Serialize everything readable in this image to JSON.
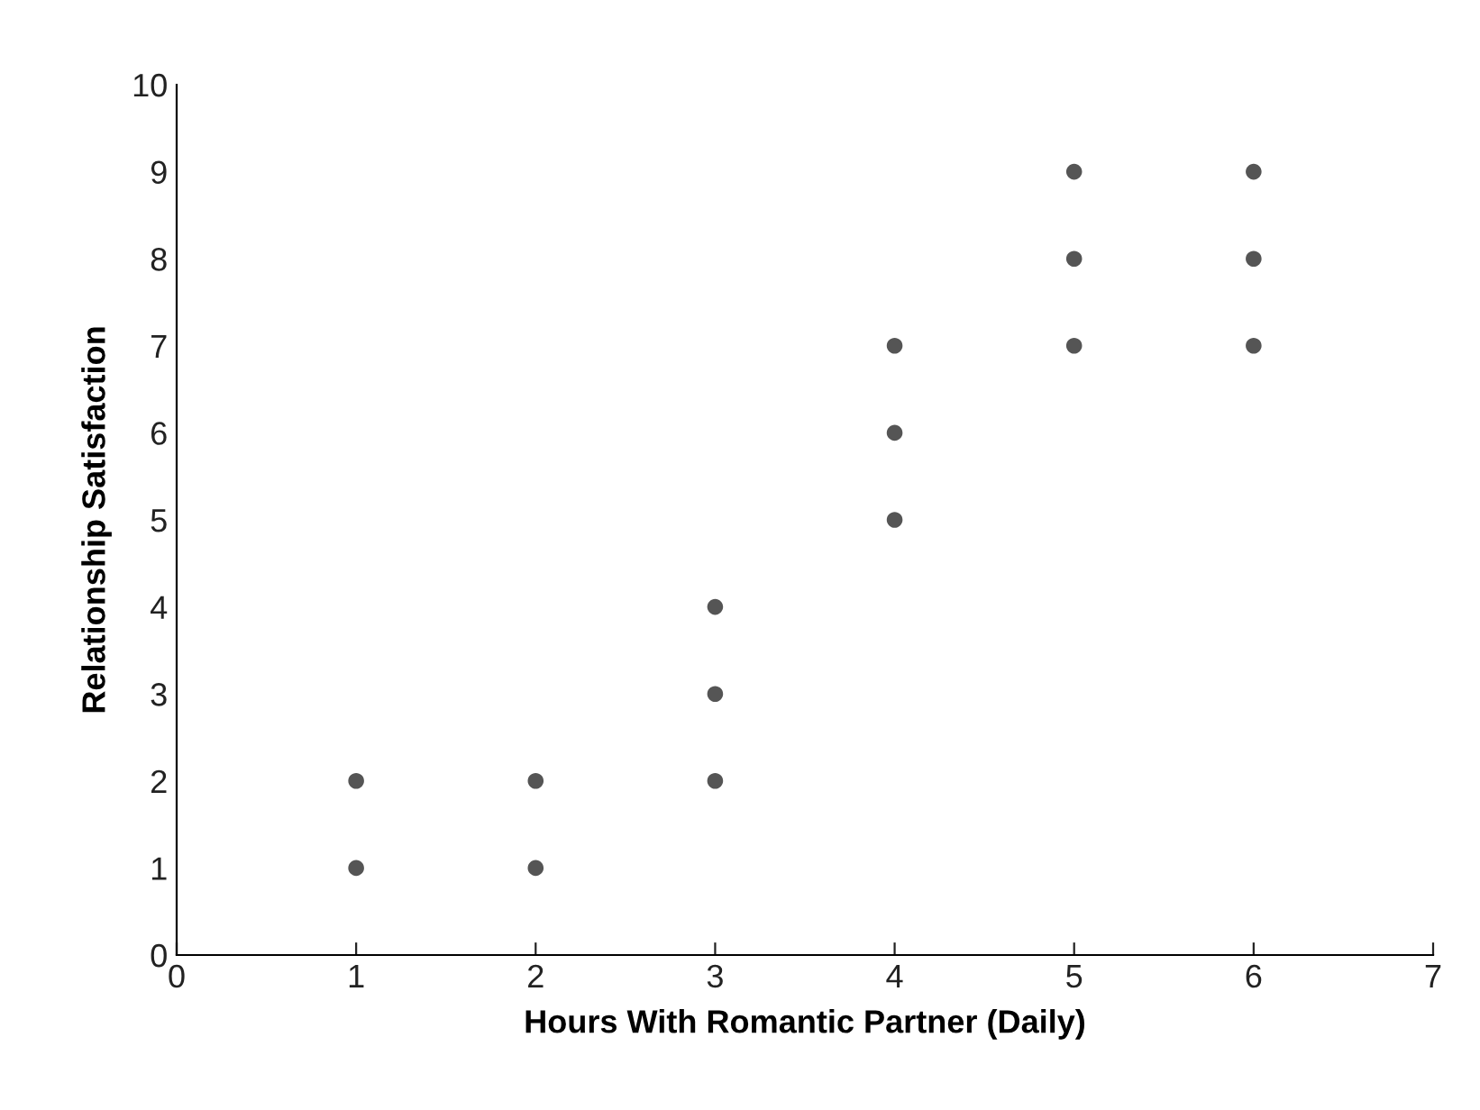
{
  "chart_data": {
    "type": "scatter",
    "xlabel": "Hours With Romantic Partner (Daily)",
    "ylabel": "Relationship Satisfaction",
    "x": [
      1,
      1,
      2,
      2,
      3,
      3,
      3,
      4,
      4,
      4,
      5,
      5,
      5,
      6,
      6,
      6
    ],
    "values": [
      1,
      2,
      1,
      2,
      2,
      3,
      4,
      5,
      6,
      7,
      7,
      8,
      9,
      7,
      8,
      9
    ],
    "color": "#555555",
    "marker": "circle",
    "xlim": [
      0,
      7
    ],
    "xticks": [
      0,
      1,
      2,
      3,
      4,
      5,
      6,
      7
    ],
    "ylim": [
      0,
      10
    ],
    "yticks": [
      0,
      1,
      2,
      3,
      4,
      5,
      6,
      7,
      8,
      9,
      10
    ],
    "grid": false,
    "legend": false
  }
}
